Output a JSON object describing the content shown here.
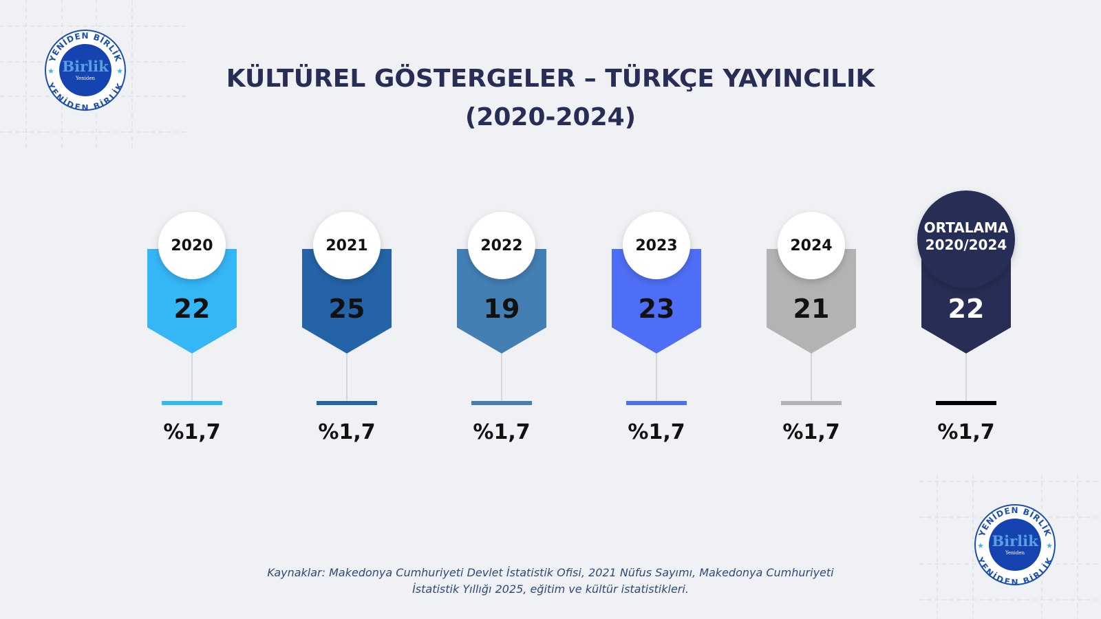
{
  "header": {
    "title_lines": [
      "KÜLTÜREL GÖSTERGELER – TÜRKÇE YAYINCILIK",
      "(2020-2024)"
    ]
  },
  "logo": {
    "ring_text": "YENİDEN BİRLİK",
    "name": "Birlik",
    "subname": "Yeniden"
  },
  "items": [
    {
      "label": [
        "2020"
      ],
      "value": "22",
      "share": "%1,7",
      "color": "#35b6f7"
    },
    {
      "label": [
        "2021"
      ],
      "value": "25",
      "share": "%1,7",
      "color": "#2563a8"
    },
    {
      "label": [
        "2022"
      ],
      "value": "19",
      "share": "%1,7",
      "color": "#447fb4"
    },
    {
      "label": [
        "2023"
      ],
      "value": "23",
      "share": "%1,7",
      "color": "#4f6ef7"
    },
    {
      "label": [
        "2024"
      ],
      "value": "21",
      "share": "%1,7",
      "color": "#b3b3b3"
    },
    {
      "label": [
        "ORTALAMA",
        "2020/2024"
      ],
      "value": "22",
      "share": "%1,7",
      "color": "#272d54",
      "bar_color": "#000000",
      "dark": true
    }
  ],
  "source": {
    "lines": [
      "Kaynaklar: Makedonya Cumhuriyeti Devlet İstatistik Ofisi, 2021 Nüfus Sayımı, Makedonya Cumhuriyeti",
      "İstatistik Yıllığı 2025, eğitim ve kültür istatistikleri."
    ]
  }
}
